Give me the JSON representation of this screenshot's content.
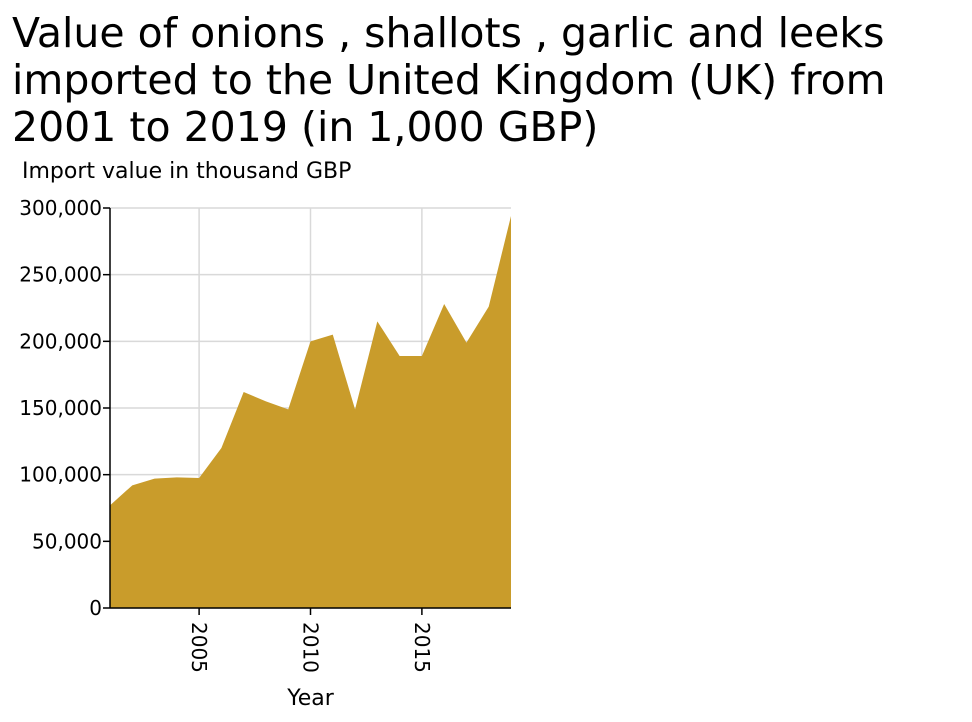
{
  "chart_data": {
    "type": "area",
    "title": "Value of onions , shallots , garlic and leeks imported to the United Kingdom (UK) from 2001 to 2019 (in 1,000 GBP)",
    "xlabel": "Year",
    "ylabel": "Import value in thousand GBP",
    "x": [
      2001,
      2002,
      2003,
      2004,
      2005,
      2006,
      2007,
      2008,
      2009,
      2010,
      2011,
      2012,
      2013,
      2014,
      2015,
      2016,
      2017,
      2018,
      2019
    ],
    "series": [
      {
        "values": [
          77000,
          92000,
          97000,
          98000,
          97500,
          120000,
          162000,
          155000,
          149000,
          200000,
          205000,
          149000,
          215000,
          189000,
          189000,
          228000,
          199000,
          226000,
          294000
        ]
      }
    ],
    "xlim": [
      2001,
      2019
    ],
    "ylim": [
      0,
      300000
    ],
    "x_ticks": [
      2005,
      2010,
      2015
    ],
    "x_tick_labels": [
      "2005",
      "2010",
      "2015"
    ],
    "y_ticks": [
      0,
      50000,
      100000,
      150000,
      200000,
      250000,
      300000
    ],
    "y_tick_labels": [
      "0",
      "50,000",
      "100,000",
      "150,000",
      "200,000",
      "250,000",
      "300,000"
    ],
    "grid": true,
    "fill_color": "#c99c2b",
    "grid_color": "#d9d9d9",
    "axis_color": "#000000"
  }
}
